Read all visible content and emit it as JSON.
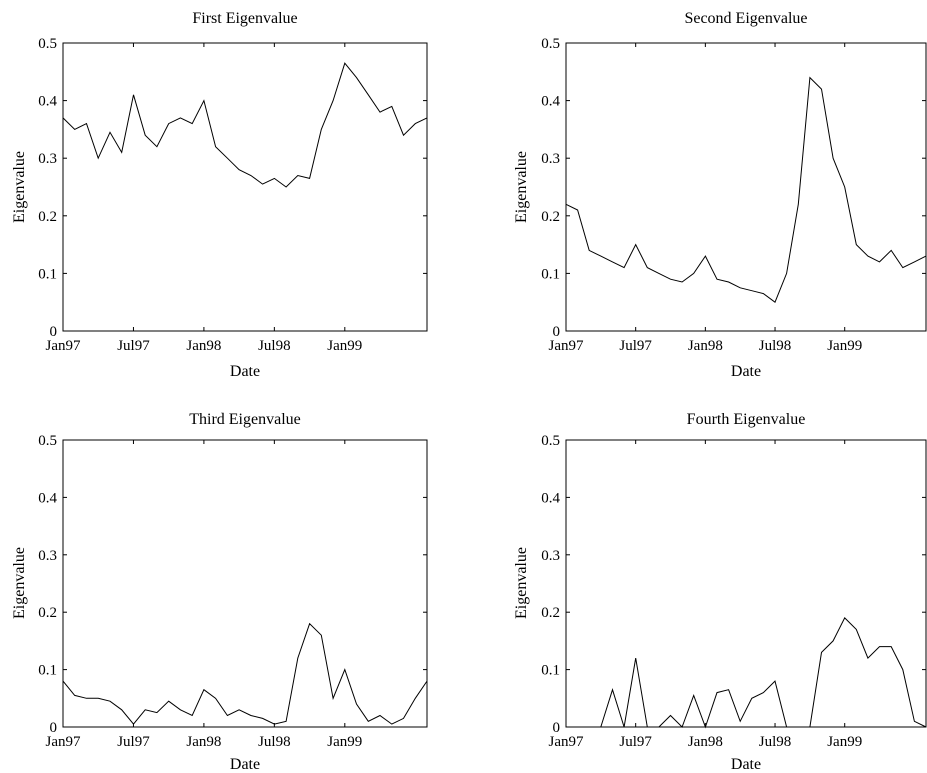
{
  "chart_data": [
    {
      "type": "line",
      "title": "First Eigenvalue",
      "xlabel": "Date",
      "ylabel": "Eigenvalue",
      "xlim": [
        "1997-01",
        "1999-08"
      ],
      "ylim": [
        0,
        0.5
      ],
      "xticks": [
        "Jan97",
        "Jul97",
        "Jan98",
        "Jul98",
        "Jan99"
      ],
      "yticks": [
        "0",
        "0.1",
        "0.2",
        "0.3",
        "0.4",
        "0.5"
      ],
      "grid": false,
      "series": [
        {
          "points": [
            [
              "1997-01",
              0.37
            ],
            [
              "1997-02",
              0.35
            ],
            [
              "1997-03",
              0.36
            ],
            [
              "1997-04",
              0.3
            ],
            [
              "1997-05",
              0.345
            ],
            [
              "1997-06",
              0.31
            ],
            [
              "1997-07",
              0.41
            ],
            [
              "1997-08",
              0.34
            ],
            [
              "1997-09",
              0.32
            ],
            [
              "1997-10",
              0.36
            ],
            [
              "1997-11",
              0.37
            ],
            [
              "1997-12",
              0.36
            ],
            [
              "1998-01",
              0.4
            ],
            [
              "1998-02",
              0.32
            ],
            [
              "1998-03",
              0.3
            ],
            [
              "1998-04",
              0.28
            ],
            [
              "1998-05",
              0.27
            ],
            [
              "1998-06",
              0.255
            ],
            [
              "1998-07",
              0.265
            ],
            [
              "1998-08",
              0.25
            ],
            [
              "1998-09",
              0.27
            ],
            [
              "1998-10",
              0.265
            ],
            [
              "1998-11",
              0.35
            ],
            [
              "1998-12",
              0.4
            ],
            [
              "1999-01",
              0.465
            ],
            [
              "1999-02",
              0.44
            ],
            [
              "1999-03",
              0.41
            ],
            [
              "1999-04",
              0.38
            ],
            [
              "1999-05",
              0.39
            ],
            [
              "1999-06",
              0.34
            ],
            [
              "1999-07",
              0.36
            ],
            [
              "1999-08",
              0.37
            ]
          ]
        }
      ]
    },
    {
      "type": "line",
      "title": "Second Eigenvalue",
      "xlabel": "Date",
      "ylabel": "Eigenvalue",
      "xlim": [
        "1997-01",
        "1999-08"
      ],
      "ylim": [
        0,
        0.5
      ],
      "xticks": [
        "Jan97",
        "Jul97",
        "Jan98",
        "Jul98",
        "Jan99"
      ],
      "yticks": [
        "0",
        "0.1",
        "0.2",
        "0.3",
        "0.4",
        "0.5"
      ],
      "grid": false,
      "series": [
        {
          "points": [
            [
              "1997-01",
              0.22
            ],
            [
              "1997-02",
              0.21
            ],
            [
              "1997-03",
              0.14
            ],
            [
              "1997-04",
              0.13
            ],
            [
              "1997-05",
              0.12
            ],
            [
              "1997-06",
              0.11
            ],
            [
              "1997-07",
              0.15
            ],
            [
              "1997-08",
              0.11
            ],
            [
              "1997-09",
              0.1
            ],
            [
              "1997-10",
              0.09
            ],
            [
              "1997-11",
              0.085
            ],
            [
              "1997-12",
              0.1
            ],
            [
              "1998-01",
              0.13
            ],
            [
              "1998-02",
              0.09
            ],
            [
              "1998-03",
              0.085
            ],
            [
              "1998-04",
              0.075
            ],
            [
              "1998-05",
              0.07
            ],
            [
              "1998-06",
              0.065
            ],
            [
              "1998-07",
              0.05
            ],
            [
              "1998-08",
              0.1
            ],
            [
              "1998-09",
              0.22
            ],
            [
              "1998-10",
              0.44
            ],
            [
              "1998-11",
              0.42
            ],
            [
              "1998-12",
              0.3
            ],
            [
              "1999-01",
              0.25
            ],
            [
              "1999-02",
              0.15
            ],
            [
              "1999-03",
              0.13
            ],
            [
              "1999-04",
              0.12
            ],
            [
              "1999-05",
              0.14
            ],
            [
              "1999-06",
              0.11
            ],
            [
              "1999-07",
              0.12
            ],
            [
              "1999-08",
              0.13
            ]
          ]
        }
      ]
    },
    {
      "type": "line",
      "title": "Third Eigenvalue",
      "xlabel": "Date",
      "ylabel": "Eigenvalue",
      "xlim": [
        "1997-01",
        "1999-08"
      ],
      "ylim": [
        0,
        0.5
      ],
      "xticks": [
        "Jan97",
        "Jul97",
        "Jan98",
        "Jul98",
        "Jan99"
      ],
      "yticks": [
        "0",
        "0.1",
        "0.2",
        "0.3",
        "0.4",
        "0.5"
      ],
      "grid": false,
      "series": [
        {
          "points": [
            [
              "1997-01",
              0.08
            ],
            [
              "1997-02",
              0.055
            ],
            [
              "1997-03",
              0.05
            ],
            [
              "1997-04",
              0.05
            ],
            [
              "1997-05",
              0.045
            ],
            [
              "1997-06",
              0.03
            ],
            [
              "1997-07",
              0.005
            ],
            [
              "1997-08",
              0.03
            ],
            [
              "1997-09",
              0.025
            ],
            [
              "1997-10",
              0.045
            ],
            [
              "1997-11",
              0.03
            ],
            [
              "1997-12",
              0.02
            ],
            [
              "1998-01",
              0.065
            ],
            [
              "1998-02",
              0.05
            ],
            [
              "1998-03",
              0.02
            ],
            [
              "1998-04",
              0.03
            ],
            [
              "1998-05",
              0.02
            ],
            [
              "1998-06",
              0.015
            ],
            [
              "1998-07",
              0.005
            ],
            [
              "1998-08",
              0.01
            ],
            [
              "1998-09",
              0.12
            ],
            [
              "1998-10",
              0.18
            ],
            [
              "1998-11",
              0.16
            ],
            [
              "1998-12",
              0.05
            ],
            [
              "1999-01",
              0.1
            ],
            [
              "1999-02",
              0.04
            ],
            [
              "1999-03",
              0.01
            ],
            [
              "1999-04",
              0.02
            ],
            [
              "1999-05",
              0.005
            ],
            [
              "1999-06",
              0.015
            ],
            [
              "1999-07",
              0.05
            ],
            [
              "1999-08",
              0.08
            ]
          ]
        }
      ]
    },
    {
      "type": "line",
      "title": "Fourth Eigenvalue",
      "xlabel": "Date",
      "ylabel": "Eigenvalue",
      "xlim": [
        "1997-01",
        "1999-08"
      ],
      "ylim": [
        0,
        0.5
      ],
      "xticks": [
        "Jan97",
        "Jul97",
        "Jan98",
        "Jul98",
        "Jan99"
      ],
      "yticks": [
        "0",
        "0.1",
        "0.2",
        "0.3",
        "0.4",
        "0.5"
      ],
      "grid": false,
      "series": [
        {
          "points": [
            [
              "1997-01",
              0.0
            ],
            [
              "1997-02",
              0.0
            ],
            [
              "1997-03",
              0.0
            ],
            [
              "1997-04",
              0.0
            ],
            [
              "1997-05",
              0.065
            ],
            [
              "1997-06",
              0.0
            ],
            [
              "1997-07",
              0.12
            ],
            [
              "1997-08",
              0.0
            ],
            [
              "1997-09",
              0.0
            ],
            [
              "1997-10",
              0.02
            ],
            [
              "1997-11",
              0.0
            ],
            [
              "1997-12",
              0.055
            ],
            [
              "1998-01",
              0.0
            ],
            [
              "1998-02",
              0.06
            ],
            [
              "1998-03",
              0.065
            ],
            [
              "1998-04",
              0.01
            ],
            [
              "1998-05",
              0.05
            ],
            [
              "1998-06",
              0.06
            ],
            [
              "1998-07",
              0.08
            ],
            [
              "1998-08",
              0.0
            ],
            [
              "1998-09",
              0.0
            ],
            [
              "1998-10",
              0.0
            ],
            [
              "1998-11",
              0.13
            ],
            [
              "1998-12",
              0.15
            ],
            [
              "1999-01",
              0.19
            ],
            [
              "1999-02",
              0.17
            ],
            [
              "1999-03",
              0.12
            ],
            [
              "1999-04",
              0.14
            ],
            [
              "1999-05",
              0.14
            ],
            [
              "1999-06",
              0.1
            ],
            [
              "1999-07",
              0.01
            ],
            [
              "1999-08",
              0.0
            ]
          ]
        }
      ]
    }
  ]
}
